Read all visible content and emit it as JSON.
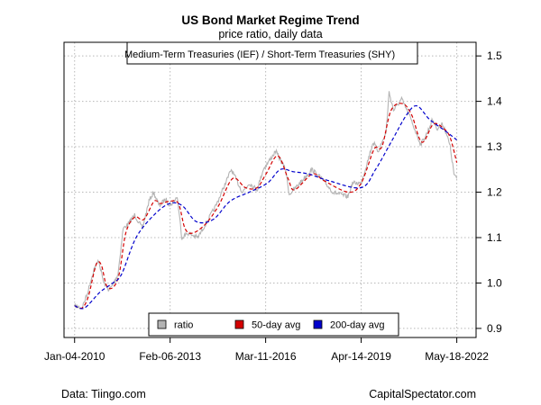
{
  "chart_data": {
    "type": "line",
    "title": "US Bond Market Regime Trend",
    "subtitle": "price ratio, daily data",
    "annotation": "Medium-Term Treasuries (IEF) / Short-Term Treasuries (SHY)",
    "x_ticks": [
      "Jan-04-2010",
      "Feb-06-2013",
      "Mar-11-2016",
      "Apr-14-2019",
      "May-18-2022"
    ],
    "y_ticks": [
      "0.9",
      "1.0",
      "1.1",
      "1.2",
      "1.3",
      "1.4",
      "1.5"
    ],
    "xlim": [
      "2009-09-01",
      "2023-01-01"
    ],
    "ylim": [
      0.88,
      1.53
    ],
    "grid": true,
    "legend_position": "bottom-center",
    "series": [
      {
        "name": "ratio",
        "color": "#b4b4b4",
        "style": "solid",
        "points": [
          [
            "2010-01-04",
            0.95
          ],
          [
            "2010-04-01",
            0.945
          ],
          [
            "2010-06-01",
            0.975
          ],
          [
            "2010-08-20",
            1.03
          ],
          [
            "2010-10-15",
            1.05
          ],
          [
            "2010-12-15",
            1.0
          ],
          [
            "2011-02-15",
            0.985
          ],
          [
            "2011-04-01",
            0.995
          ],
          [
            "2011-06-01",
            1.02
          ],
          [
            "2011-08-01",
            1.12
          ],
          [
            "2011-10-01",
            1.13
          ],
          [
            "2011-12-15",
            1.15
          ],
          [
            "2012-03-15",
            1.12
          ],
          [
            "2012-06-01",
            1.18
          ],
          [
            "2012-07-25",
            1.2
          ],
          [
            "2012-10-01",
            1.17
          ],
          [
            "2012-12-15",
            1.185
          ],
          [
            "2013-02-06",
            1.17
          ],
          [
            "2013-05-01",
            1.19
          ],
          [
            "2013-06-25",
            1.1
          ],
          [
            "2013-09-01",
            1.11
          ],
          [
            "2013-12-31",
            1.1
          ],
          [
            "2014-04-01",
            1.13
          ],
          [
            "2014-08-01",
            1.17
          ],
          [
            "2015-01-30",
            1.25
          ],
          [
            "2015-06-10",
            1.2
          ],
          [
            "2015-09-01",
            1.22
          ],
          [
            "2015-12-01",
            1.205
          ],
          [
            "2016-02-11",
            1.25
          ],
          [
            "2016-07-08",
            1.29
          ],
          [
            "2016-11-01",
            1.25
          ],
          [
            "2016-12-15",
            1.195
          ],
          [
            "2017-03-01",
            1.21
          ],
          [
            "2017-09-08",
            1.25
          ],
          [
            "2018-01-01",
            1.23
          ],
          [
            "2018-05-15",
            1.2
          ],
          [
            "2018-11-08",
            1.19
          ],
          [
            "2019-01-01",
            1.22
          ],
          [
            "2019-04-14",
            1.22
          ],
          [
            "2019-09-03",
            1.31
          ],
          [
            "2019-11-01",
            1.29
          ],
          [
            "2020-02-01",
            1.33
          ],
          [
            "2020-03-09",
            1.42
          ],
          [
            "2020-05-01",
            1.38
          ],
          [
            "2020-08-04",
            1.405
          ],
          [
            "2020-11-01",
            1.37
          ],
          [
            "2021-03-18",
            1.305
          ],
          [
            "2021-06-01",
            1.33
          ],
          [
            "2021-08-04",
            1.36
          ],
          [
            "2021-10-01",
            1.34
          ],
          [
            "2021-12-01",
            1.35
          ],
          [
            "2022-01-15",
            1.33
          ],
          [
            "2022-03-01",
            1.3
          ],
          [
            "2022-04-15",
            1.24
          ],
          [
            "2022-05-18",
            1.23
          ]
        ]
      },
      {
        "name": "50-day avg",
        "color": "#d40000",
        "style": "dashed",
        "points": [
          [
            "2010-01-04",
            0.95
          ],
          [
            "2010-04-01",
            0.945
          ],
          [
            "2010-06-15",
            0.97
          ],
          [
            "2010-09-15",
            1.04
          ],
          [
            "2010-11-15",
            1.04
          ],
          [
            "2011-01-15",
            0.995
          ],
          [
            "2011-04-01",
            0.99
          ],
          [
            "2011-06-15",
            1.02
          ],
          [
            "2011-09-01",
            1.11
          ],
          [
            "2011-12-15",
            1.145
          ],
          [
            "2012-04-01",
            1.14
          ],
          [
            "2012-08-01",
            1.18
          ],
          [
            "2012-10-15",
            1.175
          ],
          [
            "2013-02-01",
            1.18
          ],
          [
            "2013-05-15",
            1.175
          ],
          [
            "2013-08-01",
            1.12
          ],
          [
            "2013-11-01",
            1.11
          ],
          [
            "2014-04-01",
            1.13
          ],
          [
            "2014-09-01",
            1.17
          ],
          [
            "2015-02-15",
            1.23
          ],
          [
            "2015-07-15",
            1.21
          ],
          [
            "2015-12-01",
            1.21
          ],
          [
            "2016-03-15",
            1.24
          ],
          [
            "2016-08-01",
            1.28
          ],
          [
            "2016-12-01",
            1.23
          ],
          [
            "2017-02-15",
            1.205
          ],
          [
            "2017-09-15",
            1.24
          ],
          [
            "2018-02-01",
            1.225
          ],
          [
            "2018-11-15",
            1.2
          ],
          [
            "2019-04-14",
            1.22
          ],
          [
            "2019-09-15",
            1.295
          ],
          [
            "2019-12-15",
            1.3
          ],
          [
            "2020-04-01",
            1.38
          ],
          [
            "2020-08-15",
            1.395
          ],
          [
            "2020-12-01",
            1.37
          ],
          [
            "2021-04-01",
            1.31
          ],
          [
            "2021-08-15",
            1.35
          ],
          [
            "2021-12-15",
            1.34
          ],
          [
            "2022-03-01",
            1.32
          ],
          [
            "2022-05-18",
            1.265
          ]
        ]
      },
      {
        "name": "200-day avg",
        "color": "#0000cc",
        "style": "dashed",
        "points": [
          [
            "2010-01-04",
            0.95
          ],
          [
            "2010-05-01",
            0.945
          ],
          [
            "2010-11-01",
            0.98
          ],
          [
            "2011-04-01",
            1.0
          ],
          [
            "2011-07-15",
            1.02
          ],
          [
            "2012-01-01",
            1.1
          ],
          [
            "2012-08-01",
            1.15
          ],
          [
            "2013-02-01",
            1.175
          ],
          [
            "2013-07-01",
            1.17
          ],
          [
            "2013-12-15",
            1.135
          ],
          [
            "2014-07-01",
            1.14
          ],
          [
            "2015-01-15",
            1.18
          ],
          [
            "2015-09-01",
            1.2
          ],
          [
            "2016-04-01",
            1.22
          ],
          [
            "2016-09-01",
            1.25
          ],
          [
            "2017-02-01",
            1.245
          ],
          [
            "2017-08-01",
            1.24
          ],
          [
            "2018-04-01",
            1.225
          ],
          [
            "2019-04-14",
            1.21
          ],
          [
            "2019-10-01",
            1.25
          ],
          [
            "2020-04-01",
            1.31
          ],
          [
            "2020-10-01",
            1.37
          ],
          [
            "2021-02-01",
            1.39
          ],
          [
            "2021-07-01",
            1.36
          ],
          [
            "2022-01-01",
            1.335
          ],
          [
            "2022-05-18",
            1.315
          ]
        ]
      }
    ]
  },
  "footer": {
    "source": "Data: Tiingo.com",
    "site": "CapitalSpectator.com"
  }
}
